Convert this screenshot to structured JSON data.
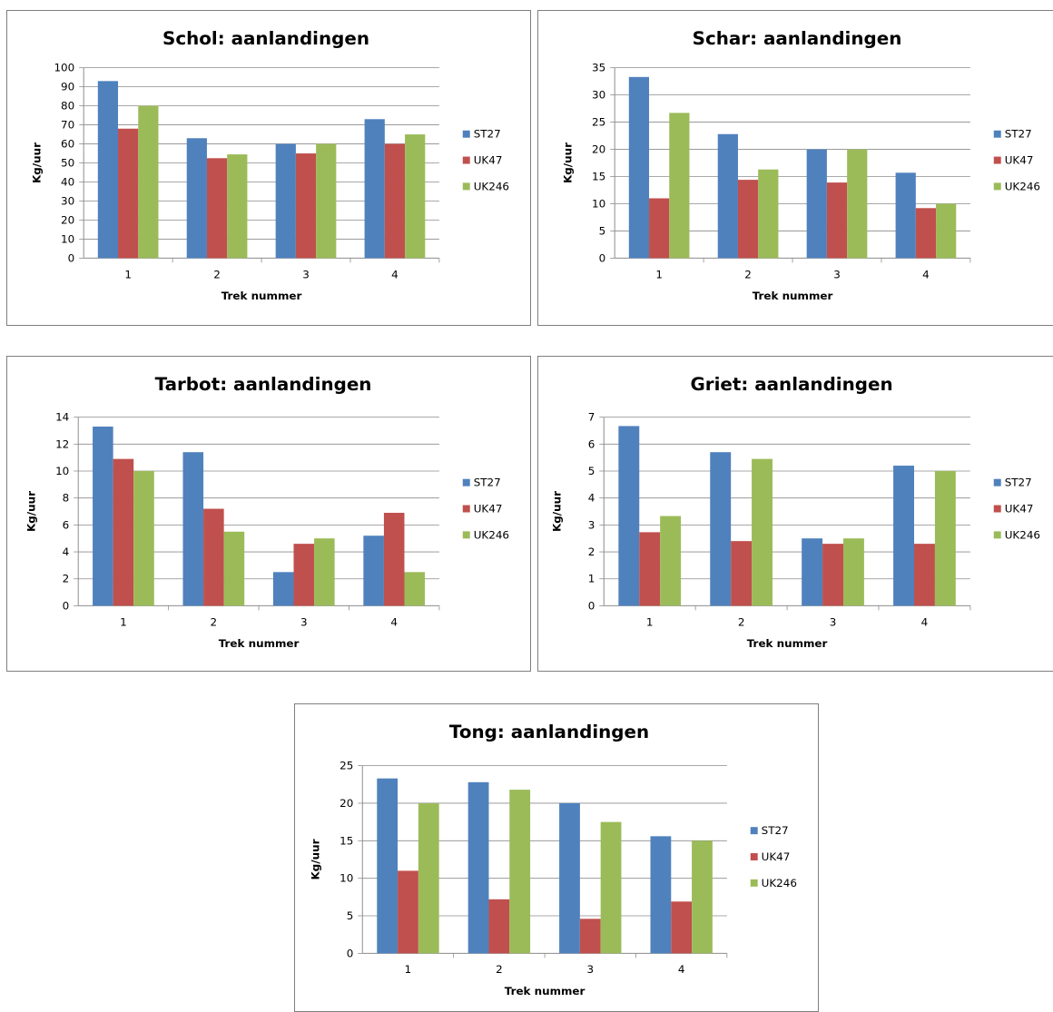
{
  "colors": {
    "ST27": "#4F81BD",
    "UK47": "#C0504D",
    "UK246": "#9BBB59"
  },
  "chart_data": [
    {
      "type": "bar",
      "title": "Schol: aanlandingen",
      "xlabel": "Trek nummer",
      "ylabel": "Kg/uur",
      "categories": [
        "1",
        "2",
        "3",
        "4"
      ],
      "ylim": [
        0,
        100
      ],
      "yticks": [
        "0",
        "10",
        "20",
        "30",
        "40",
        "50",
        "60",
        "70",
        "80",
        "90",
        "100"
      ],
      "grid": true,
      "legend": "right",
      "series": [
        {
          "name": "ST27",
          "values": [
            93,
            63,
            60,
            73
          ]
        },
        {
          "name": "UK47",
          "values": [
            68,
            52.5,
            55,
            60
          ]
        },
        {
          "name": "UK246",
          "values": [
            80,
            54.5,
            60,
            65
          ]
        }
      ]
    },
    {
      "type": "bar",
      "title": "Schar: aanlandingen",
      "xlabel": "Trek nummer",
      "ylabel": "Kg/uur",
      "categories": [
        "1",
        "2",
        "3",
        "4"
      ],
      "ylim": [
        0,
        35
      ],
      "yticks": [
        "0",
        "5",
        "10",
        "15",
        "20",
        "25",
        "30",
        "35"
      ],
      "grid": true,
      "legend": "right",
      "series": [
        {
          "name": "ST27",
          "values": [
            33.3,
            22.8,
            20,
            15.7
          ]
        },
        {
          "name": "UK47",
          "values": [
            11,
            14.4,
            13.9,
            9.2
          ]
        },
        {
          "name": "UK246",
          "values": [
            26.7,
            16.3,
            20,
            10
          ]
        }
      ]
    },
    {
      "type": "bar",
      "title": "Tarbot: aanlandingen",
      "xlabel": "Trek nummer",
      "ylabel": "Kg/uur",
      "categories": [
        "1",
        "2",
        "3",
        "4"
      ],
      "ylim": [
        0,
        14
      ],
      "yticks": [
        "0",
        "2",
        "4",
        "6",
        "8",
        "10",
        "12",
        "14"
      ],
      "grid": true,
      "legend": "right",
      "series": [
        {
          "name": "ST27",
          "values": [
            13.3,
            11.4,
            2.5,
            5.2
          ]
        },
        {
          "name": "UK47",
          "values": [
            10.9,
            7.2,
            4.6,
            6.9
          ]
        },
        {
          "name": "UK246",
          "values": [
            10,
            5.5,
            5,
            2.5
          ]
        }
      ]
    },
    {
      "type": "bar",
      "title": "Griet: aanlandingen",
      "xlabel": "Trek nummer",
      "ylabel": "Kg/uur",
      "categories": [
        "1",
        "2",
        "3",
        "4"
      ],
      "ylim": [
        0,
        7
      ],
      "yticks": [
        "0",
        "1",
        "2",
        "3",
        "4",
        "5",
        "6",
        "7"
      ],
      "grid": true,
      "legend": "right",
      "series": [
        {
          "name": "ST27",
          "values": [
            6.67,
            5.7,
            2.5,
            5.2
          ]
        },
        {
          "name": "UK47",
          "values": [
            2.73,
            2.4,
            2.3,
            2.3
          ]
        },
        {
          "name": "UK246",
          "values": [
            3.33,
            5.45,
            2.5,
            5
          ]
        }
      ]
    },
    {
      "type": "bar",
      "title": "Tong: aanlandingen",
      "xlabel": "Trek nummer",
      "ylabel": "Kg/uur",
      "categories": [
        "1",
        "2",
        "3",
        "4"
      ],
      "ylim": [
        0,
        25
      ],
      "yticks": [
        "0",
        "5",
        "10",
        "15",
        "20",
        "25"
      ],
      "grid": true,
      "legend": "right",
      "series": [
        {
          "name": "ST27",
          "values": [
            23.3,
            22.8,
            20,
            15.6
          ]
        },
        {
          "name": "UK47",
          "values": [
            11,
            7.2,
            4.6,
            6.9
          ]
        },
        {
          "name": "UK246",
          "values": [
            20,
            21.8,
            17.5,
            15
          ]
        }
      ]
    }
  ]
}
